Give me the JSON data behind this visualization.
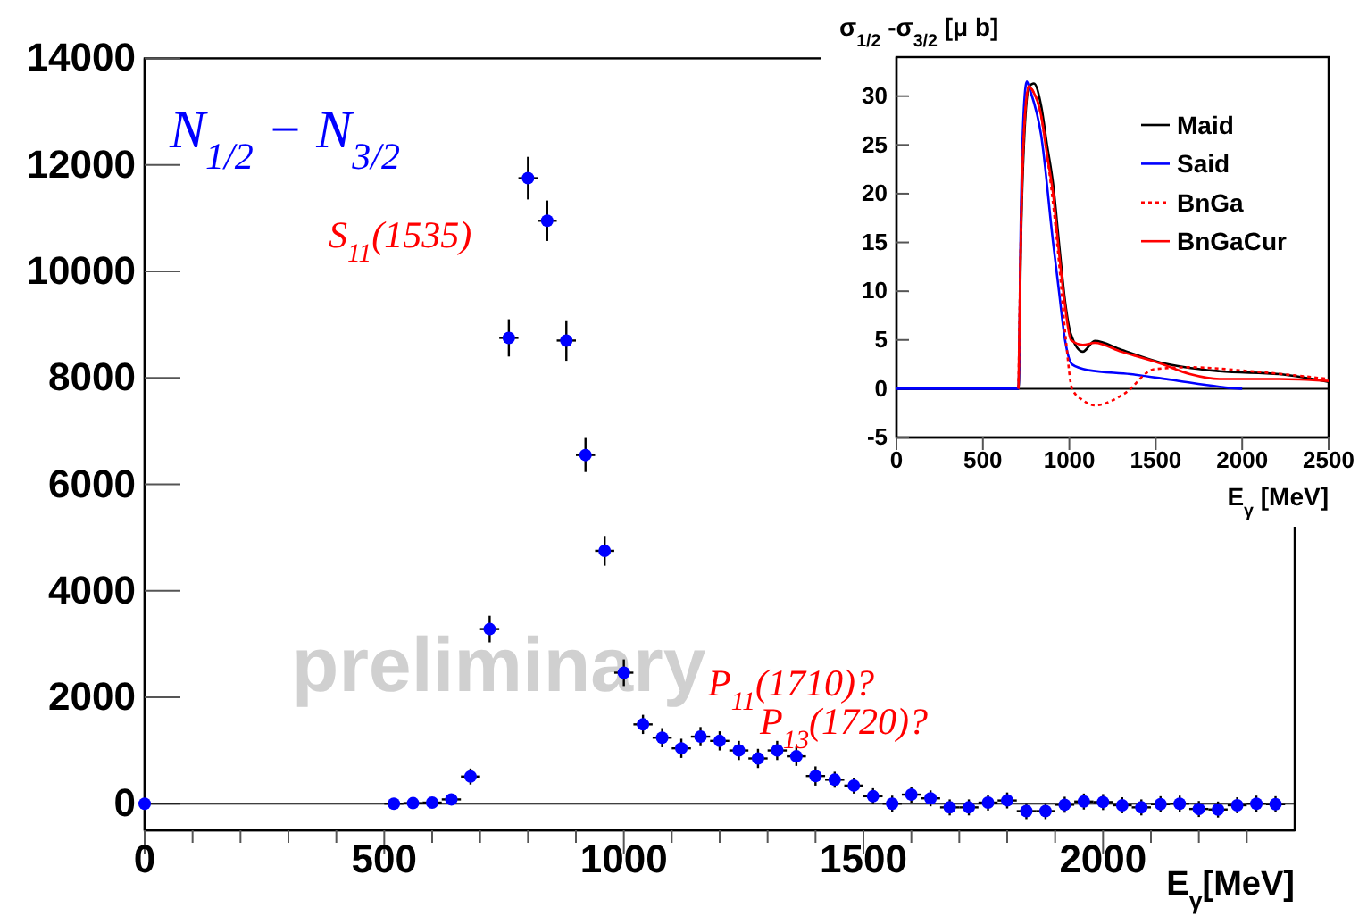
{
  "chart_data": [
    {
      "type": "scatter",
      "title": "N$_{1/2}$ − N$_{3/2}$",
      "xlabel": "E$_{γ}$[MeV]",
      "xlim": [
        0,
        2400
      ],
      "ylim": [
        -500,
        14000
      ],
      "xticks": [
        0,
        {
          "value": 100,
          "label": null
        },
        {
          "value": 200,
          "label": null
        },
        {
          "value": 300,
          "label": null
        },
        {
          "value": 400,
          "label": null
        },
        500,
        {
          "value": 600,
          "label": null
        },
        {
          "value": 700,
          "label": null
        },
        {
          "value": 800,
          "label": null
        },
        {
          "value": 900,
          "label": null
        },
        1000,
        {
          "value": 1100,
          "label": null
        },
        {
          "value": 1200,
          "label": null
        },
        {
          "value": 1300,
          "label": null
        },
        {
          "value": 1400,
          "label": null
        },
        1500,
        {
          "value": 1600,
          "label": null
        },
        {
          "value": 1700,
          "label": null
        },
        {
          "value": 1800,
          "label": null
        },
        {
          "value": 1900,
          "label": null
        },
        2000,
        {
          "value": 2100,
          "label": null
        },
        {
          "value": 2200,
          "label": null
        },
        {
          "value": 2300,
          "label": null
        }
      ],
      "yticks": [
        0,
        2000,
        4000,
        6000,
        8000,
        10000,
        12000,
        14000
      ],
      "marker": "circle",
      "ref_lines": [
        {
          "axis": "y",
          "value": 0,
          "color": "#000000"
        }
      ],
      "annotations": [
        "S$_{11}$(1535)",
        "P$_{11}$(1710)?",
        "P$_{13}$(1720)?",
        "preliminary"
      ],
      "series": [
        {
          "color": "#0000ff",
          "x": [
            0,
            520,
            560,
            600,
            640,
            680,
            720,
            760,
            800,
            840,
            880,
            920,
            960,
            1000,
            1040,
            1080,
            1120,
            1160,
            1200,
            1240,
            1280,
            1320,
            1360,
            1400,
            1440,
            1480,
            1520,
            1560,
            1600,
            1640,
            1680,
            1720,
            1760,
            1800,
            1840,
            1880,
            1920,
            1960,
            2000,
            2040,
            2080,
            2120,
            2160,
            2200,
            2240,
            2280,
            2320,
            2360
          ],
          "values": [
            0,
            0,
            10,
            20,
            80,
            510,
            3280,
            8750,
            11750,
            10950,
            8700,
            6550,
            4750,
            2460,
            1490,
            1240,
            1040,
            1260,
            1180,
            1000,
            850,
            1000,
            890,
            520,
            450,
            340,
            140,
            0,
            170,
            100,
            -70,
            -70,
            20,
            60,
            -140,
            -140,
            -20,
            40,
            30,
            -30,
            -70,
            -10,
            0,
            -100,
            -110,
            -30,
            0,
            -10
          ],
          "errors": [
            null,
            40,
            40,
            40,
            40,
            150,
            250,
            350,
            400,
            380,
            380,
            320,
            280,
            250,
            180,
            180,
            180,
            180,
            180,
            180,
            180,
            180,
            180,
            180,
            150,
            150,
            150,
            150,
            150,
            150,
            150,
            150,
            150,
            150,
            150,
            150,
            150,
            150,
            150,
            150,
            150,
            150,
            150,
            150,
            150,
            150,
            150,
            150
          ],
          "xerrors": [
            null,
            20,
            20,
            20,
            20,
            20,
            20,
            20,
            20,
            20,
            20,
            20,
            20,
            20,
            20,
            20,
            20,
            20,
            20,
            20,
            20,
            20,
            20,
            20,
            20,
            20,
            20,
            20,
            20,
            20,
            20,
            20,
            20,
            20,
            20,
            20,
            20,
            20,
            20,
            20,
            20,
            20,
            20,
            20,
            20,
            20,
            20,
            20
          ]
        }
      ]
    },
    {
      "type": "line",
      "ylabel": "σ$_{1/2}$ -σ$_{3/2}$ [μ b]",
      "xlabel": "E$_{γ}$ [MeV]",
      "xlim": [
        0,
        2500
      ],
      "ylim": [
        -5,
        34
      ],
      "xticks": [
        0,
        500,
        1000,
        1500,
        2000,
        2500
      ],
      "yticks": [
        -5,
        0,
        5,
        10,
        15,
        20,
        25,
        30
      ],
      "legend": "top right",
      "ref_lines": [
        {
          "axis": "y",
          "value": 0,
          "color": "#000000"
        }
      ],
      "series": [
        {
          "name": "Maid",
          "color": "#000000",
          "line_style": "solid",
          "x": [
            0,
            706,
            720,
            740,
            768,
            795,
            837,
            871,
            906,
            940,
            975,
            1009,
            1078,
            1147,
            1300,
            1525,
            1870,
            2214,
            2500
          ],
          "values": [
            0,
            0,
            15,
            26,
            31,
            31.3,
            29,
            25,
            21,
            15,
            9,
            5.6,
            3.8,
            4.9,
            4,
            2.7,
            1.8,
            1.5,
            0.7
          ]
        },
        {
          "name": "Said",
          "color": "#0000ff",
          "line_style": "solid",
          "x": [
            0,
            706,
            720,
            735,
            754,
            775,
            837,
            906,
            940,
            975,
            1016,
            1112,
            1353,
            1594,
            1870,
            1990,
            2000
          ],
          "values": [
            0,
            0,
            18,
            28,
            31.5,
            30.5,
            26,
            15,
            10,
            5,
            2.5,
            1.9,
            1.5,
            0.9,
            0.2,
            0,
            0
          ]
        },
        {
          "name": "BnGa",
          "color": "#ff0000",
          "line_style": "dotted",
          "x": [
            706,
            720,
            740,
            765,
            790,
            837,
            871,
            906,
            940,
            980,
            1016,
            1080,
            1147,
            1319,
            1491,
            1698,
            2043,
            2500
          ],
          "values": [
            0,
            16,
            27,
            31,
            30.5,
            28,
            24,
            19,
            13,
            5,
            0,
            -1.2,
            -1.7,
            -0.5,
            2,
            2.2,
            1.8,
            1
          ]
        },
        {
          "name": "BnGaCur",
          "color": "#ff0000",
          "line_style": "solid",
          "x": [
            706,
            720,
            740,
            765,
            790,
            837,
            871,
            906,
            940,
            975,
            1009,
            1078,
            1147,
            1300,
            1525,
            1698,
            1870,
            2214,
            2500
          ],
          "values": [
            0,
            16,
            27,
            31,
            30.5,
            28,
            24,
            20,
            14,
            8.5,
            5,
            4.5,
            4.7,
            3.8,
            2.6,
            1.5,
            1,
            1,
            0.8
          ]
        }
      ]
    }
  ]
}
